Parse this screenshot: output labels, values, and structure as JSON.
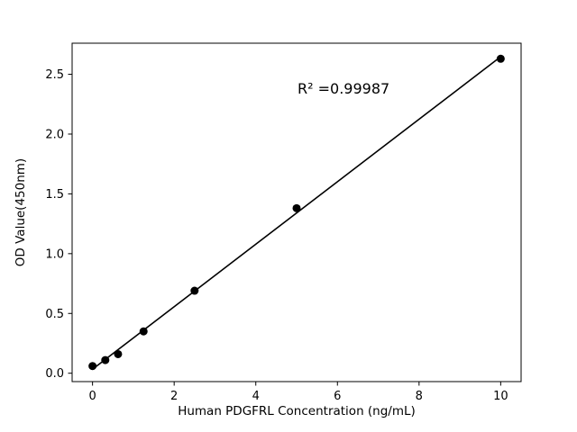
{
  "chart_data": {
    "type": "scatter",
    "title": "",
    "xlabel": "Human PDGFRL Concentration (ng/mL)",
    "ylabel": "OD Value(450nm)",
    "x": [
      0,
      0.3125,
      0.625,
      1.25,
      2.5,
      5,
      10
    ],
    "y": [
      0.06,
      0.11,
      0.16,
      0.35,
      0.69,
      1.38,
      2.63
    ],
    "fit_line": true,
    "annotation": {
      "text": "R² =0.99987"
    },
    "xlim": [
      -0.5,
      10.5
    ],
    "ylim": [
      -0.07,
      2.76
    ],
    "x_ticks": [
      "0",
      "2",
      "4",
      "6",
      "8",
      "10"
    ],
    "y_ticks": [
      "0.0",
      "0.5",
      "1.0",
      "1.5",
      "2.0",
      "2.5"
    ],
    "marker_color": "#000000",
    "line_color": "#000000",
    "background_color": "#ffffff",
    "grid": false,
    "legend": "none"
  }
}
